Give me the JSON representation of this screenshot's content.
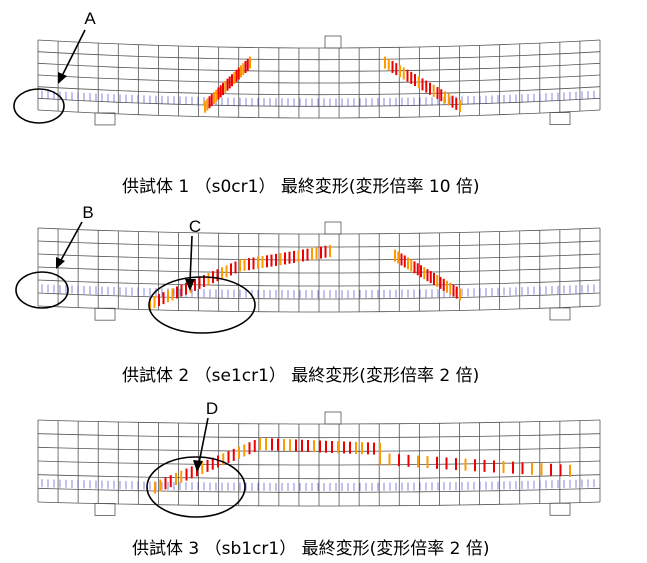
{
  "panels": [
    {
      "labels": [
        "A"
      ],
      "caption": "供試体 1 （s0cr1） 最終変形(変形倍率 10 倍)"
    },
    {
      "labels": [
        "B",
        "C"
      ],
      "caption": "供試体 2 （se1cr1） 最終変形(変形倍率 2 倍)"
    },
    {
      "labels": [
        "D"
      ],
      "caption": "供試体 3 （sb1cr1） 最終変形(変形倍率 2 倍)"
    }
  ]
}
